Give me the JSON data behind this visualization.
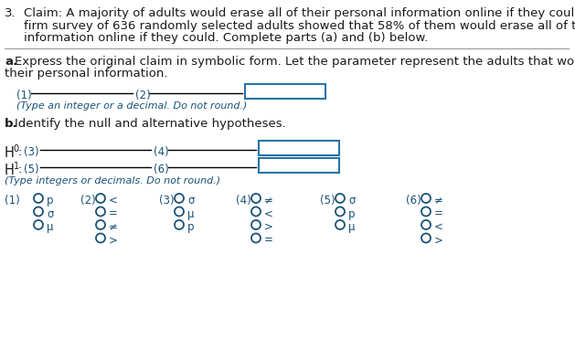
{
  "title_number": "3.",
  "claim_line1": "Claim: A majority of adults would erase all of their personal information online if they could. A software",
  "claim_line2": "firm survey of 636 randomly selected adults showed that 58% of them would erase all of their personal",
  "claim_line3": "information online if they could. Complete parts (a) and (b) below.",
  "part_a_line1": "Express the original claim in symbolic form. Let the parameter represent the adults that would erase",
  "part_a_line2": "their personal information.",
  "label_1": "(1)",
  "label_2": "(2)",
  "hint_a": "(Type an integer or a decimal. Do not round.)",
  "part_b_text": "Identify the null and alternative hypotheses.",
  "hint_b": "(Type integers or decimals. Do not round.)",
  "text_color": "#1a5276",
  "black_color": "#1a1a1a",
  "bg_color": "#ffffff",
  "box_color": "#2874a6",
  "groups": [
    {
      "label": "(1)",
      "options": [
        "p",
        "σ",
        "μ"
      ]
    },
    {
      "label": "(2)",
      "options": [
        "<",
        "=",
        "≠",
        ">"
      ]
    },
    {
      "label": "(3)",
      "options": [
        "σ",
        "μ",
        "p"
      ]
    },
    {
      "label": "(4)",
      "options": [
        "≠",
        "<",
        ">",
        "="
      ]
    },
    {
      "label": "(5)",
      "options": [
        "σ",
        "p",
        "μ"
      ]
    },
    {
      "label": "(6)",
      "options": [
        "≠",
        "=",
        "<",
        ">"
      ]
    }
  ]
}
